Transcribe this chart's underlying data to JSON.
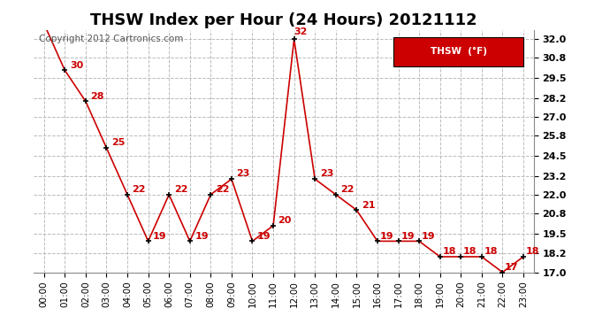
{
  "title": "THSW Index per Hour (24 Hours) 20121112",
  "copyright": "Copyright 2012 Cartronics.com",
  "legend_label": "THSW  (°F)",
  "hours": [
    0,
    1,
    2,
    3,
    4,
    5,
    6,
    7,
    8,
    9,
    10,
    11,
    12,
    13,
    14,
    15,
    16,
    17,
    18,
    19,
    20,
    21,
    22,
    23
  ],
  "hour_labels": [
    "00:00",
    "01:00",
    "02:00",
    "03:00",
    "04:00",
    "05:00",
    "06:00",
    "07:00",
    "08:00",
    "09:00",
    "10:00",
    "11:00",
    "12:00",
    "13:00",
    "14:00",
    "15:00",
    "16:00",
    "17:00",
    "18:00",
    "19:00",
    "20:00",
    "21:00",
    "22:00",
    "23:00"
  ],
  "values": [
    33,
    30,
    28,
    25,
    22,
    19,
    22,
    19,
    22,
    23,
    19,
    20,
    32,
    23,
    22,
    21,
    19,
    19,
    19,
    18,
    18,
    18,
    17,
    18
  ],
  "ylim_min": 17.0,
  "ylim_max": 32.6,
  "yticks": [
    17.0,
    18.2,
    19.5,
    20.8,
    22.0,
    23.2,
    24.5,
    25.8,
    27.0,
    28.2,
    29.5,
    30.8,
    32.0
  ],
  "line_color": "#cc0000",
  "marker_color": "#000000",
  "label_color": "#cc0000",
  "bg_color": "#ffffff",
  "grid_color": "#bbbbbb",
  "legend_bg": "#cc0000",
  "legend_text_color": "#ffffff",
  "title_fontsize": 13,
  "tick_fontsize": 8,
  "copyright_fontsize": 7.5
}
